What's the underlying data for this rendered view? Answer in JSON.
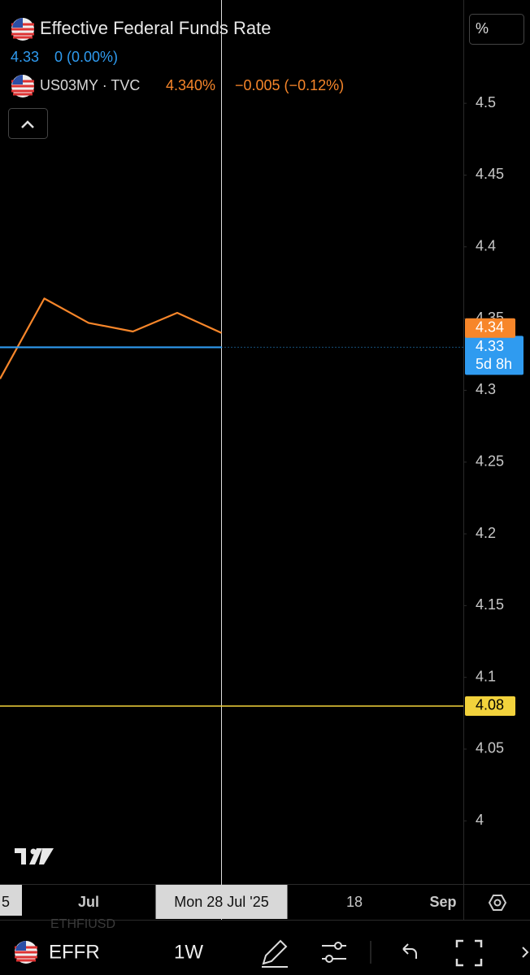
{
  "header": {
    "value": "4.33",
    "change": "0 (0.00%)",
    "compare_value": "4.340%",
    "compare_change": "−0.005 (−0.12%)"
  },
  "scale_button": "%",
  "chart_data": {
    "type": "line",
    "categories": [
      "5",
      null,
      "Jul",
      null,
      null,
      "Mon 28 Jul '25",
      null,
      null,
      "18",
      null,
      "Sep"
    ],
    "series": [
      {
        "name": "US03MY · TVC",
        "color": "#f7862a",
        "values": [
          4.308,
          4.364,
          4.347,
          4.341,
          4.354,
          4.34,
          null,
          null,
          null,
          null,
          null
        ]
      },
      {
        "name": "Effective Federal Funds Rate",
        "color": "#2f9bf0",
        "values": [
          4.33,
          4.33,
          4.33,
          4.33,
          4.33,
          4.33,
          null,
          null,
          null,
          null,
          null
        ],
        "countdown": "5d 8h"
      }
    ],
    "price_line": {
      "value": 4.08,
      "color": "#f2d23c"
    },
    "ylim": [
      3.956,
      4.572
    ],
    "yticks": [
      4.5,
      4.45,
      4.4,
      4.35,
      4.3,
      4.25,
      4.2,
      4.15,
      4.1,
      4.05,
      4
    ]
  },
  "toolbar": {
    "symbol": "EFFR",
    "interval": "1W",
    "background_symbol": "ETHFIUSD"
  }
}
